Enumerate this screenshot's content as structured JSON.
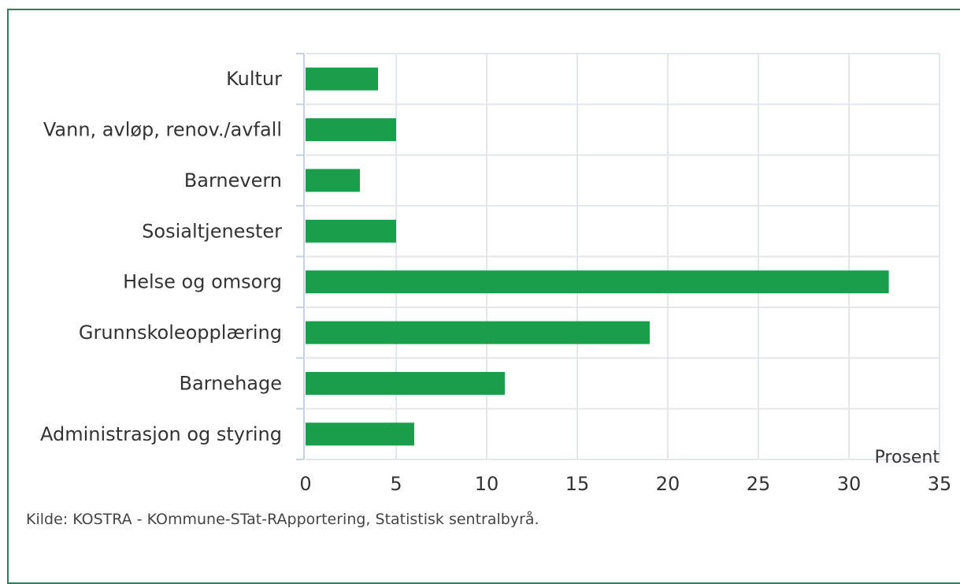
{
  "chart_data": {
    "type": "bar",
    "orientation": "horizontal",
    "categories": [
      "Kultur",
      "Vann, avløp, renov./avfall",
      "Barnevern",
      "Sosialtjenester",
      "Helse og omsorg",
      "Grunnskoleopplæring",
      "Barnehage",
      "Administrasjon og styring"
    ],
    "values": [
      4,
      5,
      3,
      5,
      32.2,
      19,
      11,
      6
    ],
    "xlabel": "Prosent",
    "xlim": [
      0,
      35
    ],
    "xticks": [
      "0",
      "5",
      "10",
      "15",
      "20",
      "25",
      "30",
      "35"
    ],
    "bar_color": "#1b9e4b",
    "grid": true
  },
  "source_text": "Kilde: KOSTRA - KOmmune-STat-RApportering, Statistisk sentralbyrå.",
  "colors": {
    "frame_border": "#2e7d5b",
    "grid": "#e3e6ea",
    "axis": "#c6d2e0"
  }
}
